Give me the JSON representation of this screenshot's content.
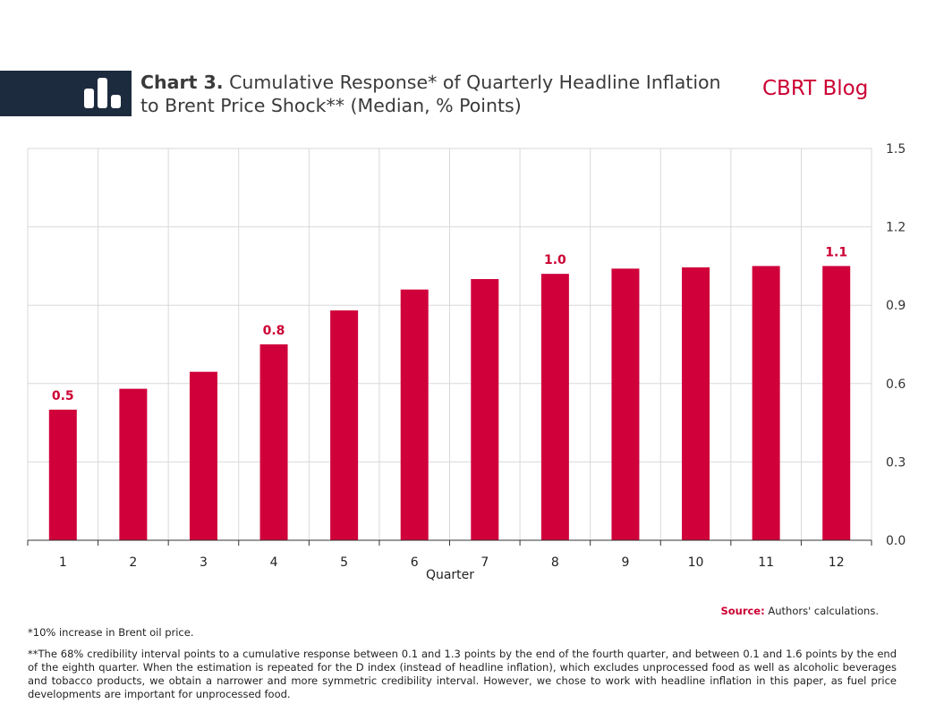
{
  "header": {
    "title_label": "Chart 3.",
    "title_line1": " Cumulative Response* of Quarterly Headline Inflation",
    "title_line2": "to Brent Price Shock** (Median, % Points)",
    "brand": "CBRT Blog",
    "icon": "bar-chart-icon"
  },
  "chart_data": {
    "type": "bar",
    "categories": [
      "1",
      "2",
      "3",
      "4",
      "5",
      "6",
      "7",
      "8",
      "9",
      "10",
      "11",
      "12"
    ],
    "values": [
      0.5,
      0.58,
      0.645,
      0.75,
      0.88,
      0.96,
      1.0,
      1.02,
      1.04,
      1.045,
      1.05,
      1.05
    ],
    "data_labels": [
      "0.5",
      "",
      "",
      "0.8",
      "",
      "",
      "",
      "1.0",
      "",
      "",
      "",
      "1.1"
    ],
    "xlabel": "Quarter",
    "ylabel": "",
    "ylim": [
      0,
      1.5
    ],
    "yticks": [
      "0.0",
      "0.3",
      "0.6",
      "0.9",
      "1.2",
      "1.5"
    ],
    "ytick_values": [
      0,
      0.3,
      0.6,
      0.9,
      1.2,
      1.5
    ],
    "y_axis_side": "right",
    "grid": true,
    "bar_color": "#d0003a",
    "label_color": "#cc0033"
  },
  "footer": {
    "source_label": "Source:",
    "source_text": " Authors' calculations.",
    "note1": "*10% increase in Brent oil price.",
    "note2": "**The 68% credibility interval points to a cumulative  response between 0.1 and 1.3 points by the end of the fourth quarter, and between 0.1 and 1.6 points by the end of the eighth quarter. When the estimation is repeated for the D index (instead of headline inflation), which  excludes unprocessed food as well as alcoholic beverages and tobacco products, we obtain a narrower and more symmetric credibility interval. However, we chose to work with headline inflation in this paper, as fuel price developments are important for unprocessed food."
  }
}
